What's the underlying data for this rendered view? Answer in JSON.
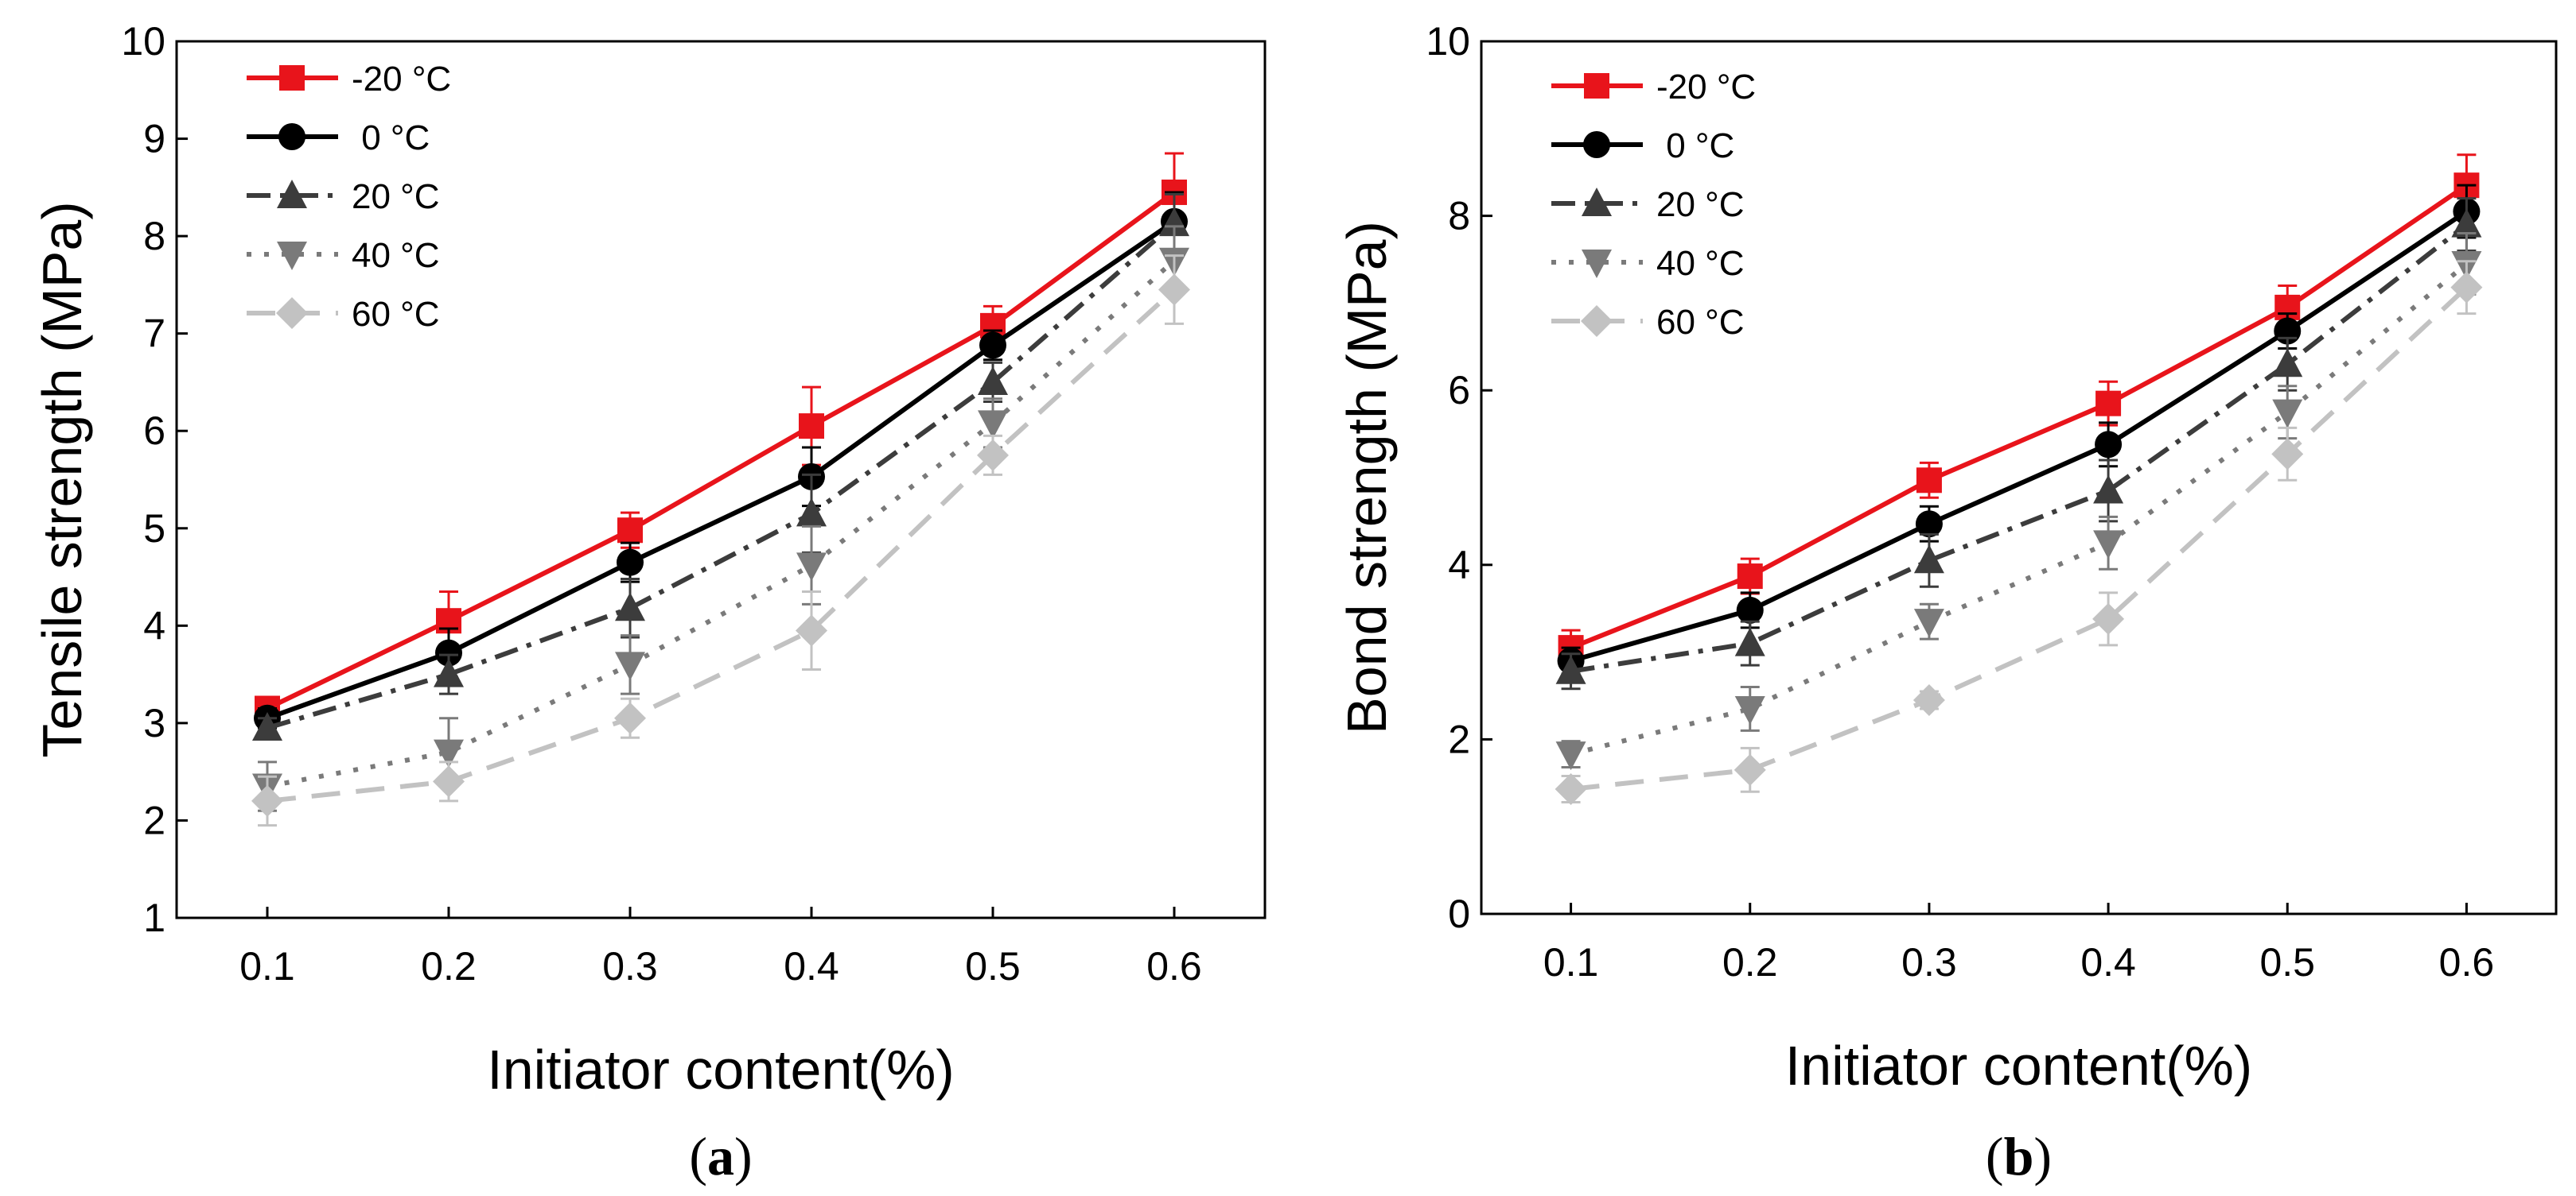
{
  "chart_data": [
    {
      "type": "line",
      "panel_label": "a",
      "xlabel": "Initiator content(%)",
      "ylabel": "Tensile strength (MPa)",
      "x": [
        0.1,
        0.2,
        0.3,
        0.4,
        0.5,
        0.6
      ],
      "x_tick_labels": [
        "0.1",
        "0.2",
        "0.3",
        "0.4",
        "0.5",
        "0.6"
      ],
      "xlim": [
        0.05,
        0.65
      ],
      "ylim": [
        1,
        10
      ],
      "y_ticks": [
        1,
        2,
        3,
        4,
        5,
        6,
        7,
        8,
        9,
        10
      ],
      "legend_position": "top-left",
      "series": [
        {
          "name": "-20 °C",
          "values": [
            3.15,
            4.05,
            4.98,
            6.05,
            7.08,
            8.45
          ],
          "errors": [
            0.1,
            0.3,
            0.18,
            0.4,
            0.2,
            0.4
          ],
          "color": "#e8141b",
          "marker": "square",
          "dash": "solid"
        },
        {
          "name": " 0 °C",
          "values": [
            3.05,
            3.72,
            4.65,
            5.53,
            6.88,
            8.15
          ],
          "errors": [
            0.1,
            0.25,
            0.2,
            0.3,
            0.15,
            0.3
          ],
          "color": "#000000",
          "marker": "circle",
          "dash": "solid"
        },
        {
          "name": "20 °C",
          "values": [
            2.95,
            3.5,
            4.18,
            5.15,
            6.5,
            8.13
          ],
          "errors": [
            0.1,
            0.2,
            0.3,
            0.4,
            0.2,
            0.3
          ],
          "color": "#3c3c3c",
          "marker": "triangle-up",
          "dash": "dash-dot"
        },
        {
          "name": "40 °C",
          "values": [
            2.35,
            2.7,
            3.6,
            4.62,
            6.08,
            7.75
          ],
          "errors": [
            0.25,
            0.35,
            0.3,
            0.4,
            0.25,
            0.35
          ],
          "color": "#7a7a7a",
          "marker": "triangle-down",
          "dash": "dotted"
        },
        {
          "name": "60 °C",
          "values": [
            2.2,
            2.4,
            3.05,
            3.95,
            5.75,
            7.45
          ],
          "errors": [
            0.25,
            0.2,
            0.2,
            0.4,
            0.2,
            0.35
          ],
          "color": "#c2c2c2",
          "marker": "diamond",
          "dash": "dashed"
        }
      ]
    },
    {
      "type": "line",
      "panel_label": "b",
      "xlabel": "Initiator content(%)",
      "ylabel": "Bond strength (MPa)",
      "x": [
        0.1,
        0.2,
        0.3,
        0.4,
        0.5,
        0.6
      ],
      "x_tick_labels": [
        "0.1",
        "0.2",
        "0.3",
        "0.4",
        "0.5",
        "0.6"
      ],
      "xlim": [
        0.05,
        0.65
      ],
      "ylim": [
        0,
        10
      ],
      "y_ticks": [
        0,
        2,
        4,
        6,
        8,
        10
      ],
      "legend_position": "top-left",
      "series": [
        {
          "name": "-20 °C",
          "values": [
            3.05,
            3.87,
            4.97,
            5.85,
            6.95,
            8.35
          ],
          "errors": [
            0.2,
            0.2,
            0.2,
            0.25,
            0.25,
            0.35
          ],
          "color": "#e8141b",
          "marker": "square",
          "dash": "solid"
        },
        {
          "name": " 0 °C",
          "values": [
            2.9,
            3.48,
            4.47,
            5.38,
            6.68,
            8.05
          ],
          "errors": [
            0.15,
            0.2,
            0.2,
            0.25,
            0.2,
            0.3
          ],
          "color": "#000000",
          "marker": "circle",
          "dash": "solid"
        },
        {
          "name": "20 °C",
          "values": [
            2.78,
            3.1,
            4.05,
            4.85,
            6.3,
            7.9
          ],
          "errors": [
            0.2,
            0.25,
            0.3,
            0.35,
            0.3,
            0.3
          ],
          "color": "#3c3c3c",
          "marker": "triangle-up",
          "dash": "dash-dot"
        },
        {
          "name": "40 °C",
          "values": [
            1.83,
            2.35,
            3.35,
            4.25,
            5.75,
            7.45
          ],
          "errors": [
            0.15,
            0.25,
            0.2,
            0.3,
            0.3,
            0.35
          ],
          "color": "#7a7a7a",
          "marker": "triangle-down",
          "dash": "dotted"
        },
        {
          "name": "60 °C",
          "values": [
            1.43,
            1.65,
            2.45,
            3.38,
            5.27,
            7.18
          ],
          "errors": [
            0.15,
            0.25,
            0.1,
            0.3,
            0.3,
            0.3
          ],
          "color": "#c2c2c2",
          "marker": "diamond",
          "dash": "dashed"
        }
      ]
    }
  ]
}
